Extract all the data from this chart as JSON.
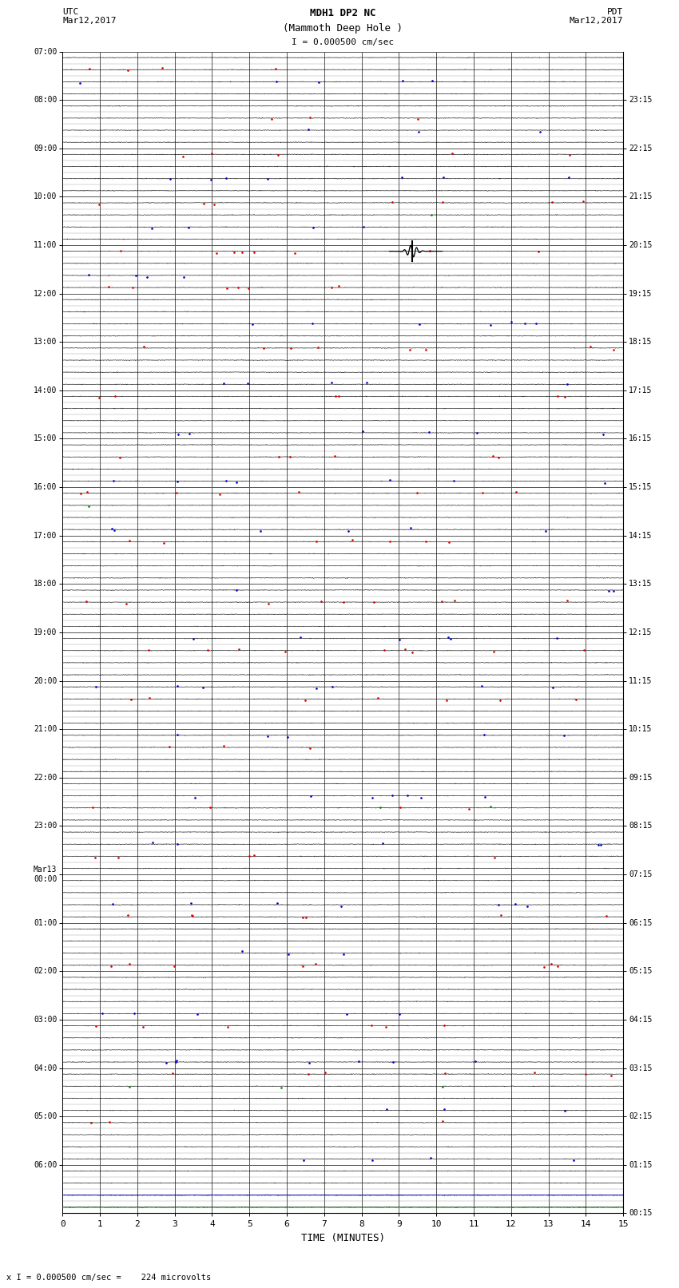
{
  "title_line1": "MDH1 DP2 NC",
  "title_line2": "(Mammoth Deep Hole )",
  "scale_label": "I = 0.000500 cm/sec",
  "left_date_label": "UTC\nMar12,2017",
  "right_date_label": "PDT\nMar12,2017",
  "xlabel": "TIME (MINUTES)",
  "bottom_note": "x I = 0.000500 cm/sec =    224 microvolts",
  "bg_color": "#ffffff",
  "grid_color_major": "#808080",
  "grid_color_minor": "#808080",
  "trace_color": "#000000",
  "n_total_rows": 96,
  "left_hour_labels": [
    "07:00",
    "08:00",
    "09:00",
    "10:00",
    "11:00",
    "12:00",
    "13:00",
    "14:00",
    "15:00",
    "16:00",
    "17:00",
    "18:00",
    "19:00",
    "20:00",
    "21:00",
    "22:00",
    "23:00",
    "Mar13\n00:00",
    "01:00",
    "02:00",
    "03:00",
    "04:00",
    "05:00",
    "06:00"
  ],
  "right_hour_labels": [
    "00:15",
    "01:15",
    "02:15",
    "03:15",
    "04:15",
    "05:15",
    "06:15",
    "07:15",
    "08:15",
    "09:15",
    "10:15",
    "11:15",
    "12:15",
    "13:15",
    "14:15",
    "15:15",
    "16:15",
    "17:15",
    "18:15",
    "19:15",
    "20:15",
    "21:15",
    "22:15",
    "23:15"
  ],
  "event_row": 16,
  "event_minute": 9.35,
  "noise_amplitude": 0.012,
  "trace_linewidth": 0.4,
  "dot_rows_red": [
    1,
    5,
    8,
    12,
    16,
    19,
    24,
    28,
    33,
    36,
    40,
    45,
    49,
    53,
    57,
    62,
    66,
    71,
    75,
    80,
    84,
    88
  ],
  "dot_rows_blue": [
    2,
    6,
    10,
    14,
    18,
    22,
    27,
    31,
    35,
    39,
    44,
    48,
    52,
    56,
    61,
    65,
    70,
    74,
    79,
    83,
    87,
    91
  ],
  "dot_rows_green": [
    13,
    37,
    62,
    85
  ],
  "last_two_colors": [
    "#0000cc",
    "#006600"
  ]
}
